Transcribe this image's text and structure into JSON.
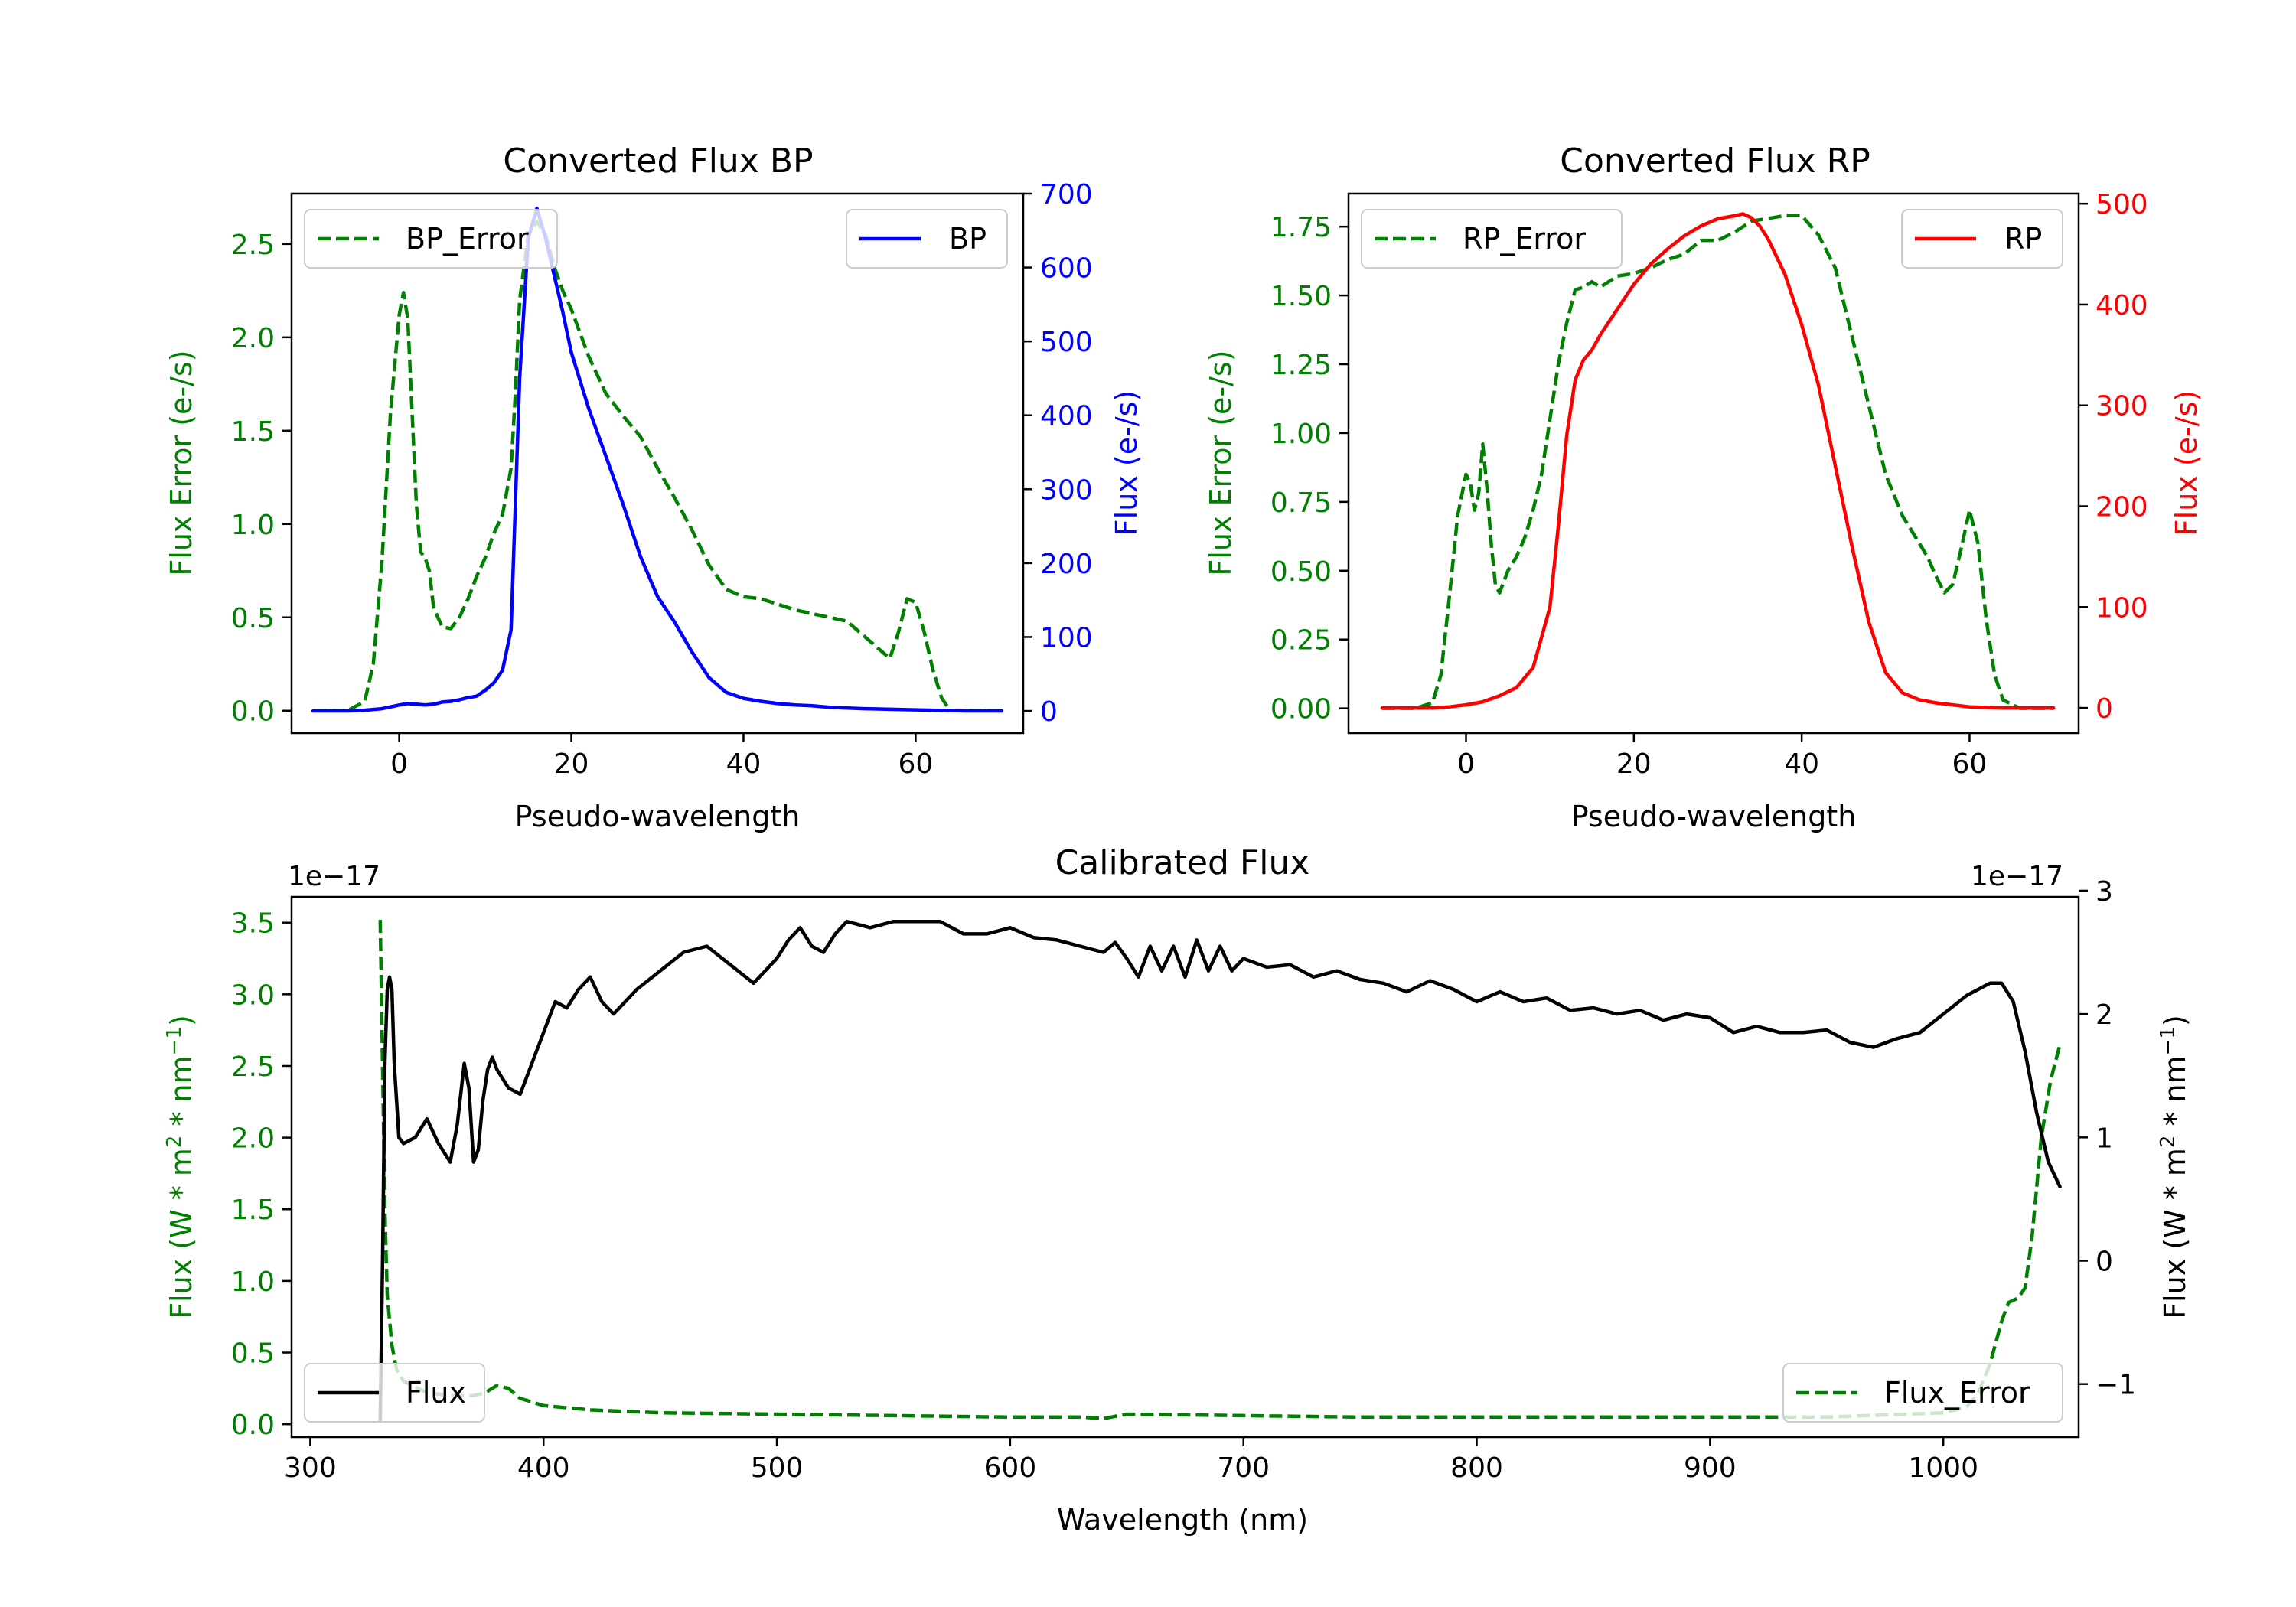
{
  "colors": {
    "bp": "#0000ff",
    "rp": "#ff0000",
    "error": "#008000",
    "flux": "#000000"
  },
  "chart_data": [
    {
      "id": "bp",
      "type": "line",
      "title": "Converted Flux BP",
      "xlabel": "Pseudo-wavelength",
      "ylabel_left": "Flux Error (e-/s)",
      "ylabel_right": "Flux (e-/s)",
      "xlim": [
        -12.5,
        72.5
      ],
      "ylim_left": [
        -0.12,
        2.77
      ],
      "ylim_right": [
        -30,
        700
      ],
      "xticks": [
        0,
        20,
        40,
        60
      ],
      "yticks_left": [
        0.0,
        0.5,
        1.0,
        1.5,
        2.0,
        2.5
      ],
      "yticks_left_labels": [
        "0.0",
        "0.5",
        "1.0",
        "1.5",
        "2.0",
        "2.5"
      ],
      "yticks_right": [
        0,
        100,
        200,
        300,
        400,
        500,
        600,
        700
      ],
      "yticks_right_labels": [
        "0",
        "100",
        "200",
        "300",
        "400",
        "500",
        "600",
        "700"
      ],
      "legend_left": {
        "label": "BP_Error",
        "position": "upper-left"
      },
      "legend_right": {
        "label": "BP",
        "position": "upper-right"
      },
      "series": [
        {
          "name": "BP_Error",
          "axis": "left",
          "style": "dashed",
          "color": "#008000",
          "x": [
            -10,
            -6,
            -4,
            -3,
            -2,
            -1,
            0,
            0.5,
            1,
            2,
            2.5,
            3,
            3.5,
            4,
            5,
            6,
            7,
            8,
            9,
            10,
            11,
            12,
            13,
            13.5,
            14,
            15,
            16,
            17,
            18,
            19,
            20,
            22,
            24,
            26,
            28,
            30,
            32,
            34,
            36,
            38,
            40,
            42,
            44,
            46,
            48,
            50,
            52,
            54,
            56,
            57,
            58,
            59,
            60,
            61,
            62,
            63,
            64,
            66,
            70
          ],
          "y": [
            0.0,
            0.0,
            0.05,
            0.25,
            0.8,
            1.6,
            2.12,
            2.24,
            2.1,
            1.1,
            0.85,
            0.82,
            0.75,
            0.55,
            0.45,
            0.44,
            0.5,
            0.6,
            0.72,
            0.82,
            0.95,
            1.05,
            1.3,
            1.7,
            2.2,
            2.55,
            2.62,
            2.55,
            2.38,
            2.25,
            2.15,
            1.9,
            1.7,
            1.58,
            1.47,
            1.3,
            1.14,
            0.97,
            0.78,
            0.65,
            0.61,
            0.6,
            0.57,
            0.54,
            0.52,
            0.5,
            0.48,
            0.4,
            0.32,
            0.28,
            0.42,
            0.6,
            0.58,
            0.42,
            0.22,
            0.07,
            0.0,
            0.0,
            0.0
          ]
        },
        {
          "name": "BP",
          "axis": "right",
          "style": "solid",
          "color": "#0000ff",
          "x": [
            -10,
            -6,
            -4,
            -2,
            0,
            1,
            2,
            3,
            4,
            5,
            6,
            7,
            8,
            9,
            10,
            11,
            12,
            13,
            14,
            15,
            16,
            17,
            18,
            19,
            20,
            22,
            24,
            26,
            28,
            30,
            32,
            34,
            36,
            38,
            40,
            42,
            44,
            46,
            48,
            50,
            54,
            58,
            62,
            66,
            70
          ],
          "y": [
            0,
            0,
            1,
            3,
            8,
            10,
            9,
            8,
            9,
            12,
            13,
            15,
            18,
            20,
            28,
            38,
            55,
            110,
            450,
            640,
            680,
            640,
            590,
            540,
            485,
            410,
            345,
            280,
            210,
            155,
            120,
            80,
            45,
            25,
            17,
            13,
            10,
            8,
            7,
            5,
            3,
            2,
            1,
            0,
            0
          ]
        }
      ]
    },
    {
      "id": "rp",
      "type": "line",
      "title": "Converted Flux RP",
      "xlabel": "Pseudo-wavelength",
      "ylabel_left": "Flux Error (e-/s)",
      "ylabel_right": "Flux (e-/s)",
      "xlim": [
        -14,
        73
      ],
      "ylim_left": [
        -0.09,
        1.87
      ],
      "ylim_right": [
        -25,
        510
      ],
      "xticks": [
        0,
        20,
        40,
        60
      ],
      "yticks_left": [
        0.0,
        0.25,
        0.5,
        0.75,
        1.0,
        1.25,
        1.5,
        1.75
      ],
      "yticks_left_labels": [
        "0.00",
        "0.25",
        "0.50",
        "0.75",
        "1.00",
        "1.25",
        "1.50",
        "1.75"
      ],
      "yticks_right": [
        0,
        100,
        200,
        300,
        400,
        500
      ],
      "yticks_right_labels": [
        "0",
        "100",
        "200",
        "300",
        "400",
        "500"
      ],
      "legend_left": {
        "label": "RP_Error",
        "position": "upper-left"
      },
      "legend_right": {
        "label": "RP",
        "position": "upper-right"
      },
      "series": [
        {
          "name": "RP_Error",
          "axis": "left",
          "style": "dashed",
          "color": "#008000",
          "x": [
            -10,
            -6,
            -4,
            -3,
            -2,
            -1,
            0,
            0.5,
            1,
            1.5,
            2,
            2.5,
            3,
            3.5,
            4,
            5,
            6,
            7,
            8,
            9,
            10,
            11,
            12,
            13,
            14,
            15,
            16,
            18,
            20,
            22,
            24,
            26,
            28,
            30,
            32,
            34,
            36,
            38,
            40,
            42,
            44,
            46,
            48,
            50,
            52,
            54,
            55,
            56,
            57,
            58,
            59,
            60,
            61,
            62,
            63,
            64,
            66,
            70
          ],
          "y": [
            0.0,
            0.0,
            0.02,
            0.12,
            0.4,
            0.7,
            0.85,
            0.82,
            0.72,
            0.78,
            0.96,
            0.8,
            0.6,
            0.45,
            0.42,
            0.5,
            0.55,
            0.62,
            0.72,
            0.85,
            1.05,
            1.25,
            1.4,
            1.52,
            1.53,
            1.55,
            1.53,
            1.57,
            1.58,
            1.6,
            1.63,
            1.65,
            1.7,
            1.7,
            1.73,
            1.77,
            1.78,
            1.79,
            1.79,
            1.72,
            1.6,
            1.35,
            1.1,
            0.85,
            0.7,
            0.6,
            0.55,
            0.48,
            0.42,
            0.45,
            0.58,
            0.72,
            0.6,
            0.32,
            0.12,
            0.03,
            0.0,
            0.0
          ]
        },
        {
          "name": "RP",
          "axis": "right",
          "style": "solid",
          "color": "#ff0000",
          "x": [
            -10,
            -6,
            -4,
            -2,
            0,
            2,
            4,
            6,
            8,
            10,
            11,
            12,
            13,
            14,
            15,
            16,
            18,
            20,
            22,
            24,
            26,
            28,
            30,
            32,
            33,
            34,
            35,
            36,
            38,
            40,
            42,
            44,
            46,
            48,
            50,
            52,
            54,
            56,
            58,
            60,
            64,
            70
          ],
          "y": [
            0,
            0,
            0,
            1,
            3,
            6,
            12,
            20,
            40,
            100,
            180,
            270,
            325,
            345,
            355,
            370,
            395,
            420,
            440,
            455,
            468,
            478,
            485,
            488,
            490,
            486,
            478,
            465,
            430,
            380,
            320,
            240,
            160,
            85,
            35,
            15,
            8,
            5,
            3,
            1,
            0,
            0
          ]
        }
      ]
    },
    {
      "id": "calibrated",
      "type": "line",
      "title": "Calibrated Flux",
      "xlabel": "Wavelength (nm)",
      "ylabel_left": "Flux (W * m^2 * nm^-1)",
      "ylabel_right": "Flux (W * m^2 * nm^-1)",
      "ylabel_parts": {
        "main": "Flux (W * m",
        "sup1": "2",
        "middle": " * nm",
        "sup2": "−1",
        "end": ")"
      },
      "offset_left": "1e−17",
      "offset_right": "1e−17",
      "xlim": [
        292,
        1058
      ],
      "ylim_left": [
        -0.09,
        3.68
      ],
      "ylim_right": [
        -1.43,
        2.95
      ],
      "xticks": [
        300,
        400,
        500,
        600,
        700,
        800,
        900,
        1000
      ],
      "yticks_left": [
        0.0,
        0.5,
        1.0,
        1.5,
        2.0,
        2.5,
        3.0,
        3.5
      ],
      "yticks_left_labels": [
        "0.0",
        "0.5",
        "1.0",
        "1.5",
        "2.0",
        "2.5",
        "3.0",
        "3.5"
      ],
      "yticks_right": [
        -1,
        0,
        1,
        2,
        3
      ],
      "yticks_right_labels": [
        "−1",
        "0",
        "1",
        "2",
        "3"
      ],
      "legend_left": {
        "label": "Flux",
        "position": "lower-left"
      },
      "legend_right": {
        "label": "Flux_Error",
        "position": "lower-right"
      },
      "series": [
        {
          "name": "Flux_Error",
          "axis": "left",
          "style": "dashed",
          "color": "#008000",
          "x": [
            330,
            331,
            332,
            333,
            335,
            337,
            340,
            345,
            350,
            360,
            370,
            375,
            380,
            385,
            390,
            400,
            420,
            450,
            500,
            550,
            600,
            630,
            640,
            650,
            700,
            750,
            800,
            850,
            900,
            950,
            1000,
            1010,
            1015,
            1020,
            1025,
            1028,
            1032,
            1035,
            1038,
            1042,
            1046,
            1050
          ],
          "y": [
            3.52,
            2.5,
            1.5,
            0.9,
            0.55,
            0.38,
            0.3,
            0.26,
            0.22,
            0.2,
            0.2,
            0.22,
            0.27,
            0.25,
            0.18,
            0.13,
            0.1,
            0.08,
            0.07,
            0.06,
            0.05,
            0.05,
            0.04,
            0.07,
            0.06,
            0.05,
            0.05,
            0.05,
            0.05,
            0.05,
            0.08,
            0.12,
            0.22,
            0.42,
            0.72,
            0.85,
            0.88,
            0.95,
            1.3,
            2.0,
            2.4,
            2.65
          ]
        },
        {
          "name": "Flux",
          "axis": "right",
          "style": "solid",
          "color": "#000000",
          "x": [
            330,
            331,
            332,
            333,
            334,
            335,
            336,
            338,
            340,
            345,
            350,
            355,
            360,
            363,
            366,
            368,
            370,
            372,
            374,
            376,
            378,
            380,
            385,
            390,
            395,
            400,
            405,
            410,
            415,
            420,
            425,
            430,
            440,
            450,
            460,
            470,
            480,
            490,
            500,
            505,
            510,
            515,
            520,
            525,
            530,
            540,
            550,
            560,
            570,
            580,
            590,
            600,
            610,
            620,
            630,
            640,
            645,
            650,
            655,
            660,
            665,
            670,
            675,
            680,
            685,
            690,
            695,
            700,
            710,
            720,
            730,
            740,
            750,
            760,
            770,
            780,
            790,
            800,
            810,
            820,
            830,
            840,
            850,
            860,
            870,
            880,
            890,
            900,
            910,
            920,
            930,
            940,
            950,
            960,
            970,
            980,
            990,
            1000,
            1010,
            1020,
            1025,
            1030,
            1035,
            1040,
            1045,
            1050
          ],
          "y": [
            -1.3,
            0.0,
            1.6,
            2.2,
            2.3,
            2.2,
            1.6,
            1.0,
            0.95,
            1.0,
            1.15,
            0.95,
            0.8,
            1.1,
            1.6,
            1.4,
            0.8,
            0.9,
            1.3,
            1.55,
            1.65,
            1.55,
            1.4,
            1.35,
            1.6,
            1.85,
            2.1,
            2.05,
            2.2,
            2.3,
            2.1,
            2.0,
            2.2,
            2.35,
            2.5,
            2.55,
            2.4,
            2.25,
            2.45,
            2.6,
            2.7,
            2.55,
            2.5,
            2.65,
            2.75,
            2.7,
            2.75,
            2.75,
            2.75,
            2.65,
            2.65,
            2.7,
            2.62,
            2.6,
            2.55,
            2.5,
            2.58,
            2.45,
            2.3,
            2.55,
            2.35,
            2.55,
            2.3,
            2.6,
            2.35,
            2.55,
            2.35,
            2.45,
            2.38,
            2.4,
            2.3,
            2.35,
            2.28,
            2.25,
            2.18,
            2.27,
            2.2,
            2.1,
            2.18,
            2.1,
            2.13,
            2.03,
            2.05,
            2.0,
            2.03,
            1.95,
            2.0,
            1.97,
            1.85,
            1.9,
            1.85,
            1.85,
            1.87,
            1.77,
            1.73,
            1.8,
            1.85,
            2.0,
            2.15,
            2.25,
            2.25,
            2.1,
            1.7,
            1.2,
            0.8,
            0.6
          ]
        }
      ]
    }
  ]
}
